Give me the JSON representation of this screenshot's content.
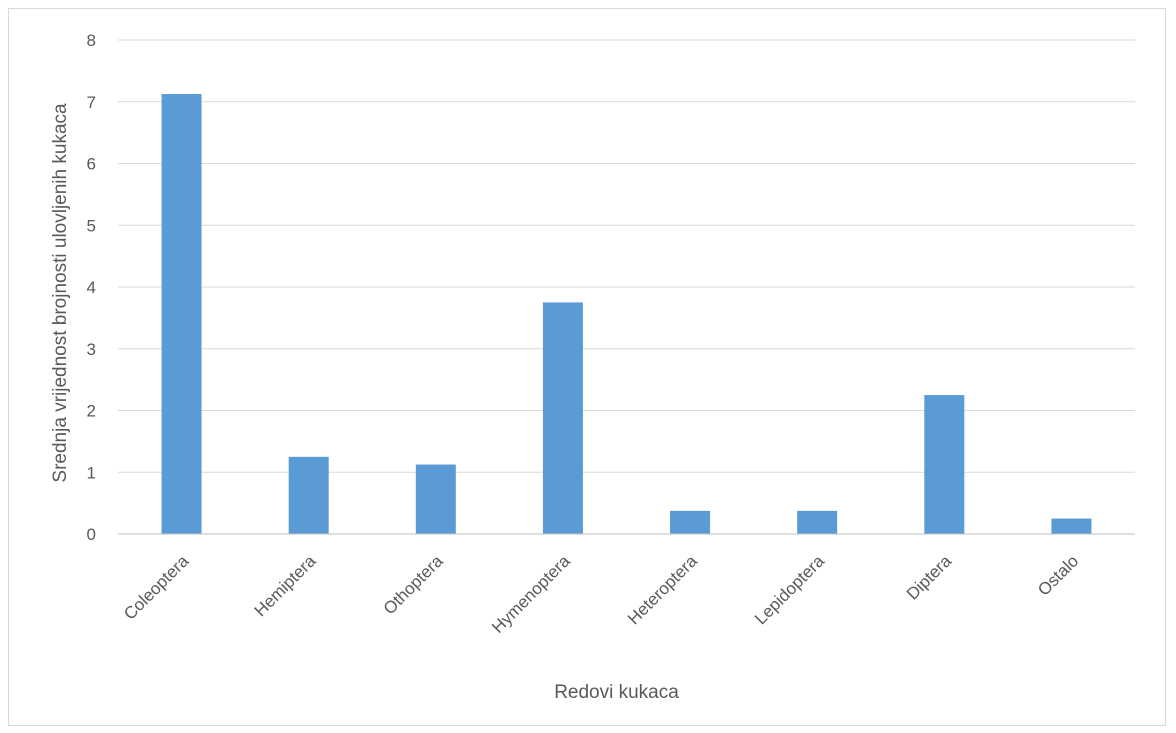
{
  "chart_data": {
    "type": "bar",
    "title": "",
    "xlabel": "Redovi kukaca",
    "ylabel": "Srednja vrijednost brojnosti ulovljenih kukaca",
    "categories": [
      "Coleoptera",
      "Hemiptera",
      "Othoptera",
      "Hymenoptera",
      "Heteroptera",
      "Lepidoptera",
      "Diptera",
      "Ostalo"
    ],
    "series": [
      {
        "values": [
          7.125,
          1.25,
          1.125,
          3.75,
          0.375,
          0.375,
          2.25,
          0.25
        ]
      }
    ],
    "ylim": [
      0,
      8
    ],
    "yticks": [
      "0",
      "1",
      "2",
      "3",
      "4",
      "5",
      "6",
      "7",
      "8"
    ],
    "grid": true,
    "legend": "none",
    "colors": {
      "bar": "#5b9bd5",
      "grid": "#d9d9d9",
      "axis": "#bfbfbf",
      "text": "#595959"
    }
  }
}
